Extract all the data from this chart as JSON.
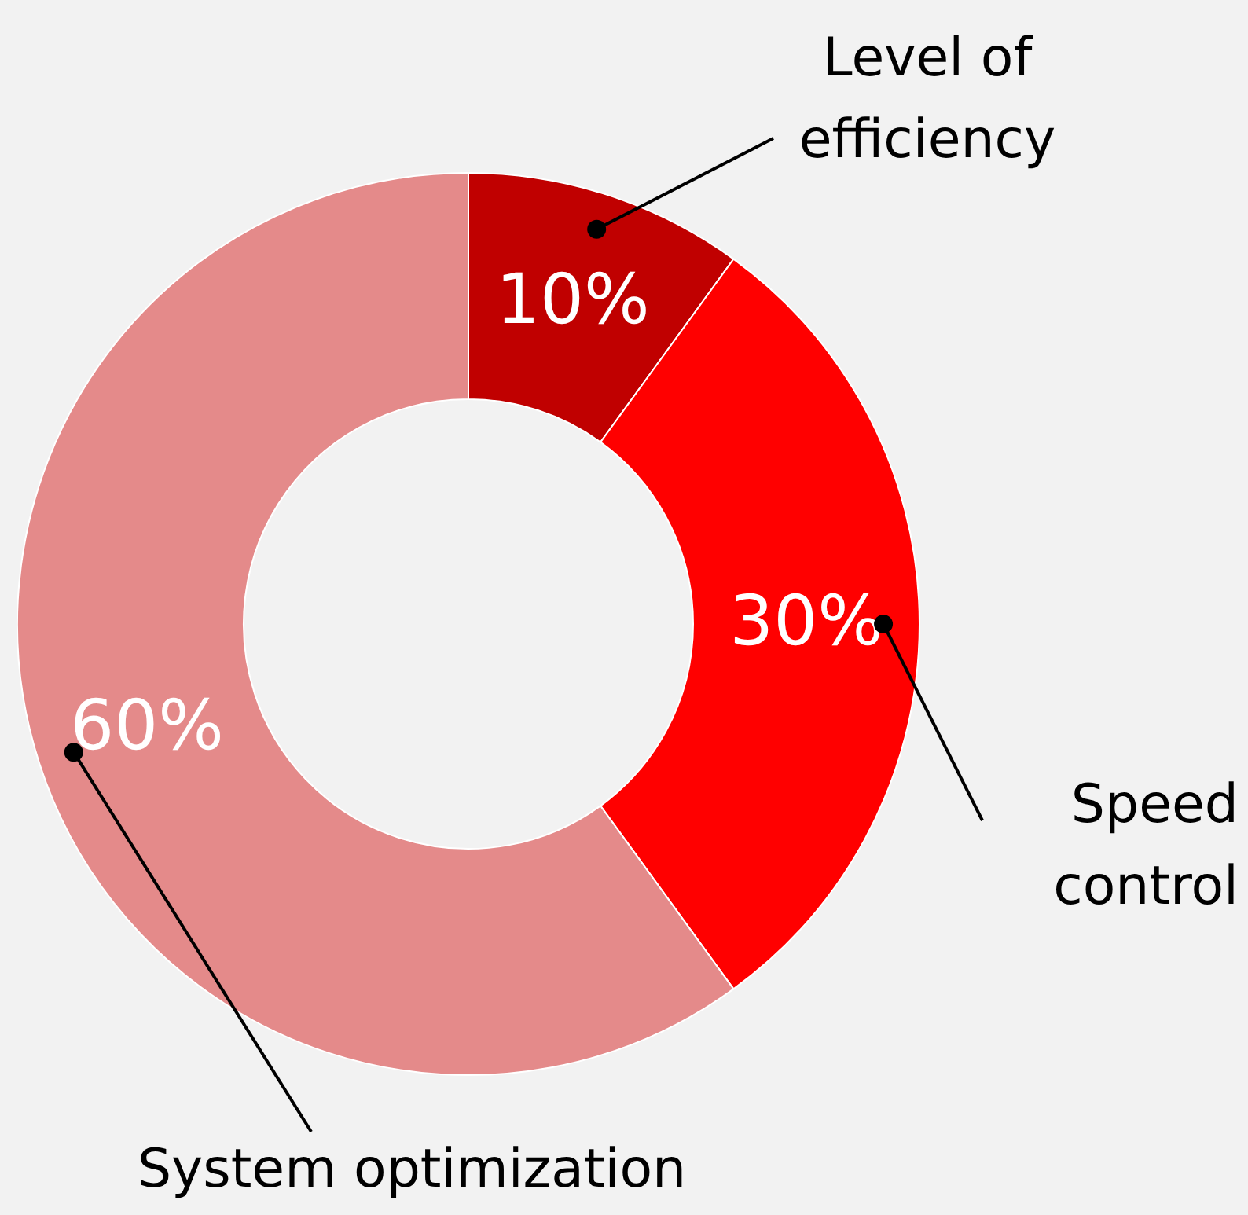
{
  "chart_data": {
    "type": "donut",
    "categories": [
      "Level of efficiency",
      "Speed control",
      "System optimization"
    ],
    "values": [
      10,
      30,
      60
    ],
    "value_labels": [
      "10%",
      "30%",
      "60%"
    ],
    "colors": [
      "#c00000",
      "#ff0000",
      "#e48a8a"
    ]
  }
}
